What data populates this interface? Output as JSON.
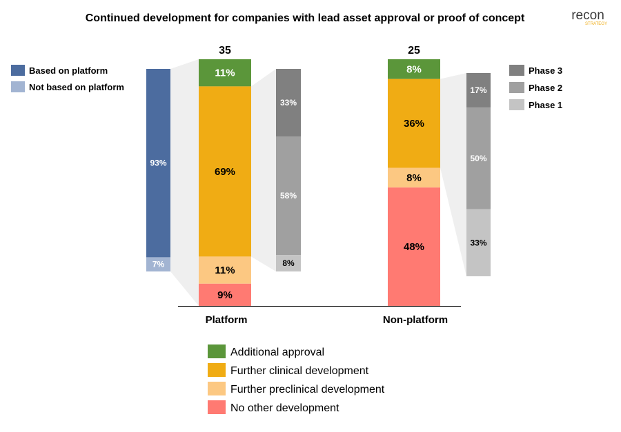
{
  "chart_data": {
    "type": "bar",
    "title": "Continued development for companies with lead asset approval or proof of concept",
    "logo": {
      "text_main": "recon",
      "text_sub": "STRATEGY"
    },
    "categories": [
      "Platform",
      "Non-platform"
    ],
    "totals": [
      "35",
      "25"
    ],
    "series": [
      {
        "name": "Additional approval",
        "color": "#5B963A",
        "values": [
          11,
          8
        ]
      },
      {
        "name": "Further clinical development",
        "color": "#F0AC14",
        "values": [
          69,
          36
        ]
      },
      {
        "name": "Further preclinical development",
        "color": "#FCC882",
        "values": [
          11,
          8
        ]
      },
      {
        "name": "No other development",
        "color": "#FF7A72",
        "values": [
          9,
          48
        ]
      }
    ],
    "segment_labels": [
      [
        "11%",
        "69%",
        "11%",
        "9%"
      ],
      [
        "8%",
        "36%",
        "8%",
        "48%"
      ]
    ],
    "platform_breakdown": {
      "series": [
        {
          "name": "Based on platform",
          "color": "#4C6C9F",
          "value": 93,
          "label": "93%"
        },
        {
          "name": "Not based on platform",
          "color": "#A2B4D2",
          "value": 7,
          "label": "7%"
        }
      ]
    },
    "phase_breakdowns": [
      {
        "category": "Platform",
        "segments": [
          {
            "name": "Phase 3",
            "color": "#808080",
            "value": 33,
            "label": "33%"
          },
          {
            "name": "Phase 2",
            "color": "#A0A0A0",
            "value": 58,
            "label": "58%"
          },
          {
            "name": "Phase 1",
            "color": "#C4C4C4",
            "value": 8,
            "label": "8%"
          }
        ]
      },
      {
        "category": "Non-platform",
        "segments": [
          {
            "name": "Phase 3",
            "color": "#808080",
            "value": 17,
            "label": "17%"
          },
          {
            "name": "Phase 2",
            "color": "#A0A0A0",
            "value": 50,
            "label": "50%"
          },
          {
            "name": "Phase 1",
            "color": "#C4C4C4",
            "value": 33,
            "label": "33%"
          }
        ]
      }
    ],
    "legends": {
      "platform": [
        "Based on platform",
        "Not based on platform"
      ],
      "phase": [
        "Phase 3",
        "Phase 2",
        "Phase 1"
      ],
      "development": [
        "Additional approval",
        "Further clinical development",
        "Further preclinical development",
        "No other development"
      ]
    },
    "colors": {
      "connector": "#EFEFEF",
      "axis": "#000000",
      "logo_main": "#3A3A3A",
      "logo_accent": "#F0AC14"
    },
    "legend_placement": "bottom-center, top-left, top-right",
    "grid": false
  }
}
